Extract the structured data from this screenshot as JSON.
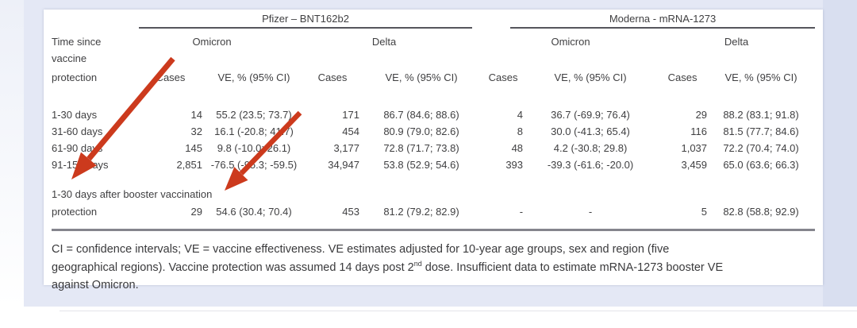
{
  "page": {
    "background": "#e4e8f5",
    "panel_background": "#ffffff"
  },
  "table": {
    "group_headers": [
      {
        "label": "Pfizer – BNT162b2"
      },
      {
        "label": "Moderna - mRNA-1273"
      }
    ],
    "variant_headers": [
      "Omicron",
      "Delta",
      "Omicron",
      "Delta"
    ],
    "row_header_lines": [
      "Time since",
      "vaccine",
      "protection"
    ],
    "column_headers": {
      "cases": "Cases",
      "ve": "VE, % (95% CI)"
    },
    "rows": [
      {
        "label": "1-30 days",
        "cells": [
          "14",
          "55.2 (23.5; 73.7)",
          "171",
          "86.7 (84.6; 88.6)",
          "4",
          "36.7 (-69.9; 76.4)",
          "29",
          "88.2 (83.1; 91.8)"
        ]
      },
      {
        "label": "31-60 days",
        "cells": [
          "32",
          "16.1 (-20.8; 41.7)",
          "454",
          "80.9 (79.0; 82.6)",
          "8",
          "30.0 (-41.3; 65.4)",
          "116",
          "81.5 (77.7; 84.6)"
        ]
      },
      {
        "label": "61-90 days",
        "cells": [
          "145",
          "9.8 (-10.0; 26.1)",
          "3,177",
          "72.8 (71.7; 73.8)",
          "48",
          "4.2 (-30.8; 29.8)",
          "1,037",
          "72.2 (70.4; 74.0)"
        ]
      },
      {
        "label": "91-150 days",
        "cells": [
          "2,851",
          "-76.5 (-95.3; -59.5)",
          "34,947",
          "53.8 (52.9; 54.6)",
          "393",
          "-39.3 (-61.6; -20.0)",
          "3,459",
          "65.0 (63.6; 66.3)"
        ]
      }
    ],
    "booster_section_label": "1-30 days after booster vaccination",
    "booster_row": {
      "label": "protection",
      "cells": [
        "29",
        "54.6 (30.4; 70.4)",
        "453",
        "81.2 (79.2; 82.9)",
        "-",
        "-",
        "5",
        "82.8 (58.8; 92.9)"
      ]
    }
  },
  "footnote": {
    "line1": "CI = confidence intervals; VE = vaccine effectiveness. VE estimates adjusted for 10-year age groups, sex and region (five",
    "line2_before_sup": "geographical regions). Vaccine protection was assumed 14 days post 2",
    "line2_sup": "nd",
    "line2_after_sup": " dose. Insufficient data to estimate mRNA-1273 booster VE",
    "line3": "against Omicron."
  },
  "annotations": {
    "arrow_color": "#cc3a1d",
    "arrows": [
      {
        "name": "arrow-to-booster-section-label"
      },
      {
        "name": "arrow-to-booster-ve-value"
      }
    ]
  }
}
